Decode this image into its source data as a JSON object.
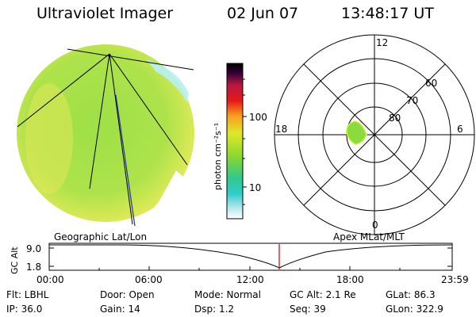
{
  "header": {
    "instrument": "Ultraviolet Imager",
    "date": "02 Jun 07",
    "time": "13:48:17 UT"
  },
  "colorbar": {
    "unit_label": "photon cm⁻²s⁻¹",
    "ticks": [
      "100",
      "10"
    ]
  },
  "polar_plot": {
    "mlt_labels": [
      "12",
      "18",
      "6",
      "0"
    ],
    "lat_labels": [
      "60",
      "70",
      "80"
    ]
  },
  "timeline": {
    "left_title": "Geographic Lat/Lon",
    "right_title": "Apex  MLat/MLT",
    "axis_label": "GC Alt",
    "y_ticks": [
      "9.0",
      "1.8"
    ],
    "x_ticks": [
      "00:00",
      "06:00",
      "12:00",
      "18:00",
      "23:59"
    ]
  },
  "info": {
    "row1": [
      "Flt: LBHL",
      "Door: Open",
      "Mode: Normal",
      "GC Alt: 2.1 Re",
      "GLat:  86.3"
    ],
    "row2": [
      "IP: 36.0",
      "Gain: 14",
      "Dsp:     1.2",
      "Seq: 39",
      "GLon: 322.9"
    ]
  },
  "colors": {
    "disk_fill": "#a6e04a",
    "disk_edge": "#f2f060",
    "auroral_spot": "#8adc3c",
    "marker_line": "#cc0000",
    "colorbar_stops": [
      "#ffffff",
      "#5fd6d0",
      "#2ecc9a",
      "#78d838",
      "#d8e830",
      "#f8a820",
      "#e82020",
      "#c81a3c",
      "#380040",
      "#000000"
    ]
  }
}
